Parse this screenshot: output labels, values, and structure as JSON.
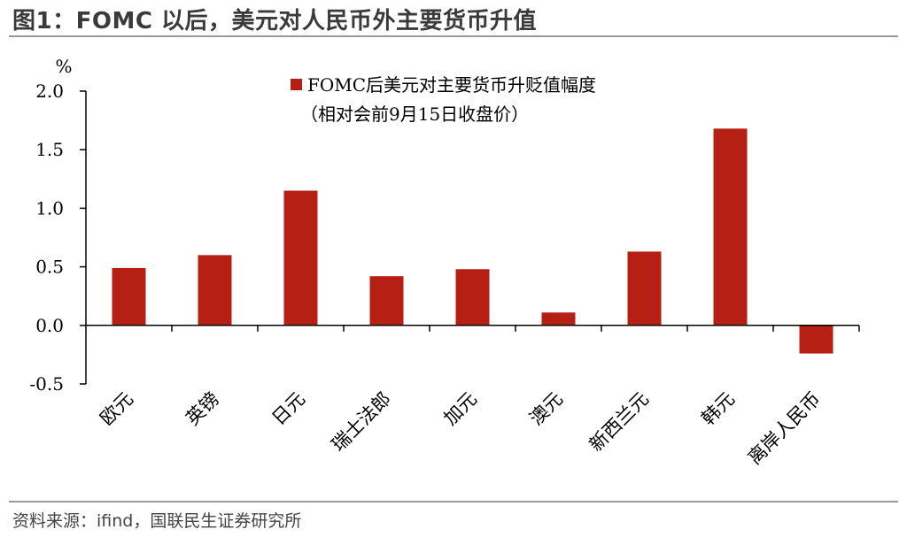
{
  "header": {
    "title": "图1：FOMC 以后，美元对人民币外主要货币升值"
  },
  "footer": {
    "source": "资料来源：ifind，国联民生证券研究所"
  },
  "colors": {
    "bar": "#B51F14",
    "axis": "#000000",
    "rule": "#9a9a9a"
  },
  "chart_data": {
    "type": "bar",
    "unit_label": "%",
    "categories": [
      "欧元",
      "英镑",
      "日元",
      "瑞士法郎",
      "加元",
      "澳元",
      "新西兰元",
      "韩元",
      "离岸人民币"
    ],
    "series": [
      {
        "name": "FOMC后美元对主要货币升贬值幅度",
        "note": "（相对会前9月15日收盘价）",
        "values": [
          0.49,
          0.6,
          1.15,
          0.42,
          0.48,
          0.11,
          0.63,
          1.68,
          -0.24
        ]
      }
    ],
    "yticks": [
      "2.0",
      "1.5",
      "1.0",
      "0.5",
      "0.0",
      "-0.5"
    ],
    "ylim": [
      -0.5,
      2.0
    ],
    "grid": false,
    "legend_position": "top-center"
  }
}
